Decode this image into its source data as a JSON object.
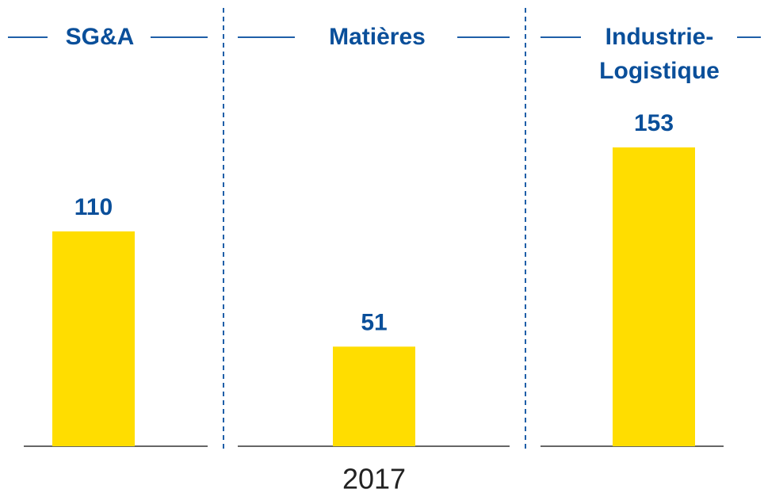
{
  "chart_data": {
    "type": "bar",
    "categories": [
      "SG&A",
      "Matières",
      "Industrie-Logistique"
    ],
    "values": [
      110,
      51,
      153
    ],
    "color": "#ffdd00",
    "x_label": "2017"
  }
}
